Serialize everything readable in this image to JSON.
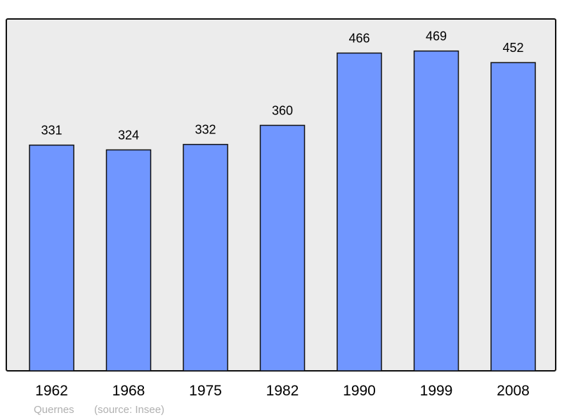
{
  "chart_data": {
    "type": "bar",
    "categories": [
      "1962",
      "1968",
      "1975",
      "1982",
      "1990",
      "1999",
      "2008"
    ],
    "values": [
      331,
      324,
      332,
      360,
      466,
      469,
      452
    ],
    "ylim": [
      0,
      516
    ],
    "grid": false,
    "bar_color": "#7096ff",
    "background_color": "#ececec",
    "title": "",
    "xlabel": "",
    "ylabel": ""
  },
  "footer": {
    "place": "Quernes",
    "source": "(source: Insee)"
  }
}
